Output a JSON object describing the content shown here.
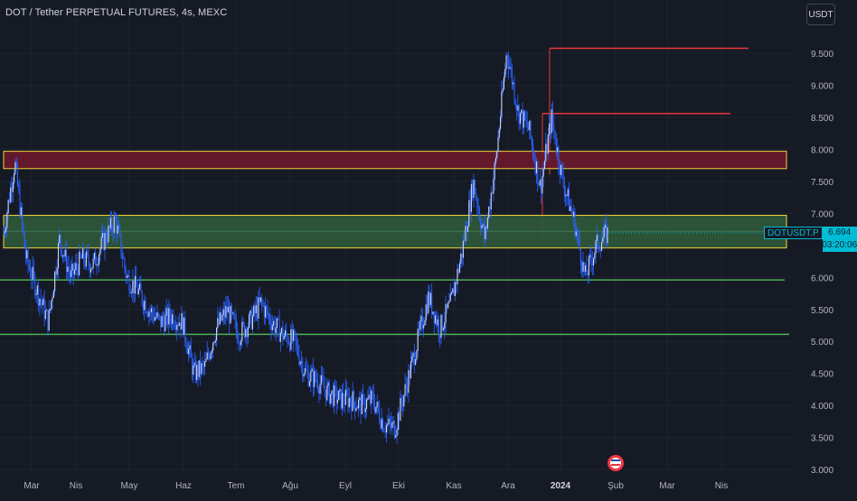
{
  "header": {
    "title": "DOT / Tether PERPETUAL FUTURES, 4s, MEXC",
    "currency_button": "USDT"
  },
  "price_axis": {
    "ticks": [
      "9.500",
      "9.000",
      "8.500",
      "8.000",
      "7.500",
      "7.000",
      "6.000",
      "5.500",
      "5.000",
      "4.500",
      "4.000",
      "3.500",
      "3.000"
    ]
  },
  "time_axis": {
    "ticks": [
      "Mar",
      "Nis",
      "May",
      "Haz",
      "Tem",
      "Ağu",
      "Eyl",
      "Eki",
      "Kas",
      "Ara",
      "2024",
      "Şub",
      "Mar",
      "Nis"
    ]
  },
  "price_tag": {
    "symbol": "DOTUSDT.P",
    "last_price": "6.694",
    "countdown": "03:20:06"
  },
  "colors": {
    "background": "#161a25",
    "candles": "#d1d8f0",
    "wick_accent": "#2962ff",
    "resistance_zone_fill": "#6b1a2c",
    "support_zone_fill": "#2f5a3a",
    "zone_border": "#f5d33b",
    "red_line": "#e5383b",
    "green_line": "#4caf50",
    "last_price": "#00bcd4"
  },
  "chart_data": {
    "type": "candlestick",
    "symbol": "DOTUSDT.P",
    "timeframe": "4s",
    "exchange": "MEXC",
    "y_range": [
      3.0,
      9.9
    ],
    "price_path": [
      {
        "t": "Mar",
        "p": 6.7
      },
      {
        "t": "Mar",
        "p": 7.8
      },
      {
        "t": "Mar",
        "p": 6.3
      },
      {
        "t": "Mar",
        "p": 5.8
      },
      {
        "t": "Mar",
        "p": 5.3
      },
      {
        "t": "Mar",
        "p": 6.6
      },
      {
        "t": "Nis",
        "p": 6.0
      },
      {
        "t": "Nis",
        "p": 6.3
      },
      {
        "t": "Nis",
        "p": 6.2
      },
      {
        "t": "Nis",
        "p": 6.6
      },
      {
        "t": "Nis",
        "p": 6.9
      },
      {
        "t": "Nis",
        "p": 6.0
      },
      {
        "t": "May",
        "p": 5.8
      },
      {
        "t": "May",
        "p": 5.5
      },
      {
        "t": "May",
        "p": 5.3
      },
      {
        "t": "May",
        "p": 5.4
      },
      {
        "t": "Haz",
        "p": 5.3
      },
      {
        "t": "Haz",
        "p": 4.5
      },
      {
        "t": "Haz",
        "p": 4.6
      },
      {
        "t": "Haz",
        "p": 5.2
      },
      {
        "t": "Tem",
        "p": 5.5
      },
      {
        "t": "Tem",
        "p": 5.1
      },
      {
        "t": "Tem",
        "p": 5.3
      },
      {
        "t": "Tem",
        "p": 5.6
      },
      {
        "t": "Ağu",
        "p": 5.3
      },
      {
        "t": "Ağu",
        "p": 5.1
      },
      {
        "t": "Ağu",
        "p": 5.0
      },
      {
        "t": "Eyl",
        "p": 4.5
      },
      {
        "t": "Eyl",
        "p": 4.4
      },
      {
        "t": "Eyl",
        "p": 4.2
      },
      {
        "t": "Eyl",
        "p": 4.1
      },
      {
        "t": "Eki",
        "p": 4.1
      },
      {
        "t": "Eki",
        "p": 4.0
      },
      {
        "t": "Eki",
        "p": 4.1
      },
      {
        "t": "Eki",
        "p": 3.7
      },
      {
        "t": "Eki",
        "p": 3.65
      },
      {
        "t": "Kas",
        "p": 4.3
      },
      {
        "t": "Kas",
        "p": 5.0
      },
      {
        "t": "Kas",
        "p": 5.7
      },
      {
        "t": "Kas",
        "p": 5.2
      },
      {
        "t": "Ara",
        "p": 5.6
      },
      {
        "t": "Ara",
        "p": 6.4
      },
      {
        "t": "Ara",
        "p": 7.5
      },
      {
        "t": "Ara",
        "p": 6.6
      },
      {
        "t": "Ara",
        "p": 7.8
      },
      {
        "t": "Ara",
        "p": 9.55
      },
      {
        "t": "Ara",
        "p": 8.6
      },
      {
        "t": "2024",
        "p": 8.3
      },
      {
        "t": "2024",
        "p": 7.4
      },
      {
        "t": "2024",
        "p": 8.5
      },
      {
        "t": "2024",
        "p": 7.5
      },
      {
        "t": "2024",
        "p": 6.9
      },
      {
        "t": "2024",
        "p": 6.0
      },
      {
        "t": "2024",
        "p": 6.5
      },
      {
        "t": "2024",
        "p": 6.694
      }
    ],
    "horizontal_levels": [
      {
        "kind": "resistance-line",
        "price": 9.58,
        "color": "#e5383b"
      },
      {
        "kind": "resistance-line",
        "price": 8.56,
        "color": "#e5383b"
      },
      {
        "kind": "zone",
        "from": 7.7,
        "to": 7.97,
        "fill": "#6b1a2c"
      },
      {
        "kind": "zone",
        "from": 6.46,
        "to": 6.97,
        "fill": "#2f5a3a"
      },
      {
        "kind": "support-line",
        "price": 5.96,
        "color": "#4caf50"
      },
      {
        "kind": "support-line",
        "price": 5.11,
        "color": "#4caf50"
      }
    ],
    "last_price": 6.694
  }
}
